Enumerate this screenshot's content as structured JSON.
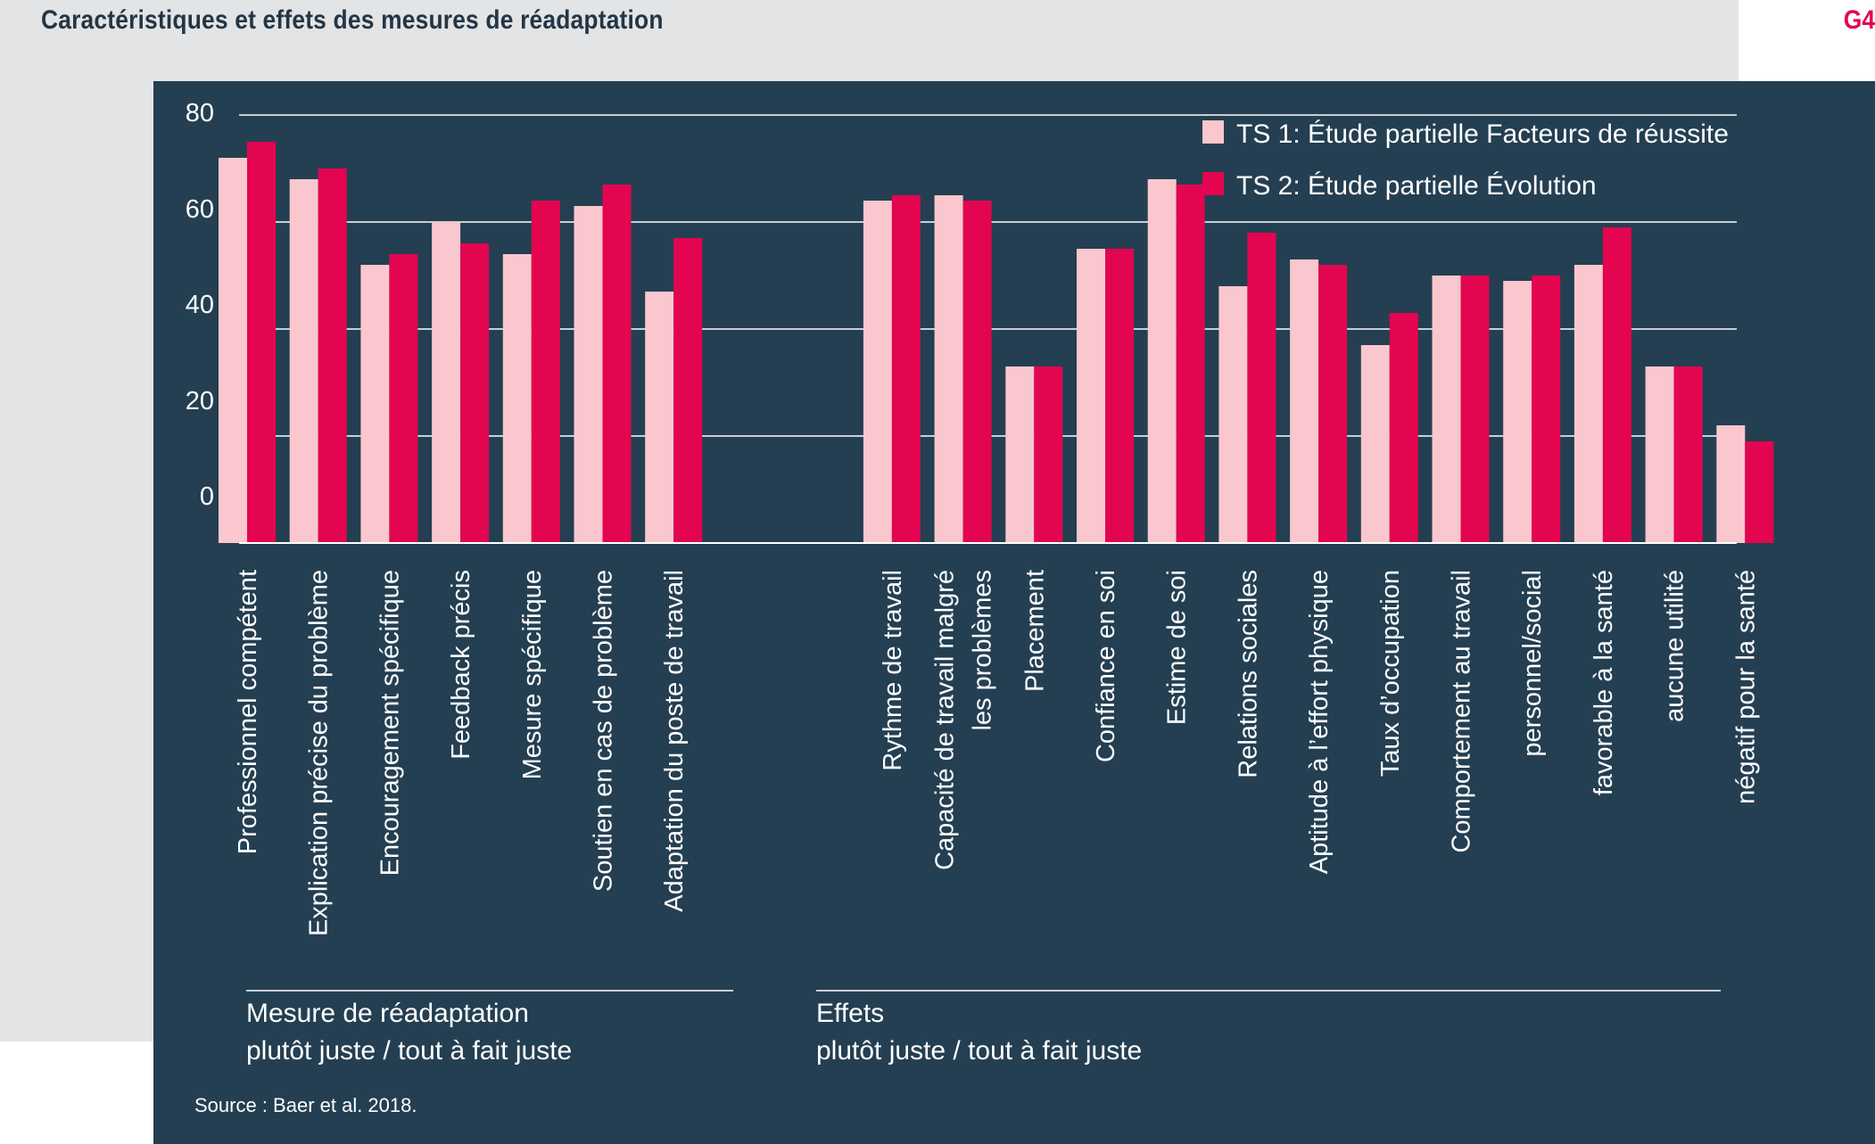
{
  "header": {
    "title": "Caractéristiques et effets des mesures de réadaptation",
    "figure_number": "G4"
  },
  "source": "Source : Baer et al. 2018.",
  "colors": {
    "panel_bg": "#243f52",
    "page_bg_grey": "#e3e4e6",
    "series_1": "#f9c7cd",
    "series_2": "#e30550",
    "grid": "#ffffff",
    "text": "#ffffff"
  },
  "chart_data": {
    "type": "bar",
    "title": "Caractéristiques et effets des mesures de réadaptation",
    "ylim": [
      0,
      80
    ],
    "yticks": [
      0,
      20,
      40,
      60,
      80
    ],
    "grid": true,
    "legend_position": "top-right",
    "categories": [
      "Professionnel compétent",
      "Explication précise du problème",
      "Encouragement spécifique",
      "Feedback précis",
      "Mesure spécifique",
      "Soutien en cas de problème",
      "Adaptation du poste de travail",
      "Rythme de travail",
      "Capacité de travail malgré les problèmes",
      "Placement",
      "Confiance en soi",
      "Estime de soi",
      "Relations sociales",
      "Aptitude à l’effort physique",
      "Taux d’occupation",
      "Comportement au travail",
      "personnel/social",
      "favorable à la santé",
      "aucune utilité",
      "négatif pour la santé"
    ],
    "category_lines": [
      [
        "Professionnel compétent"
      ],
      [
        "Explication précise du problème"
      ],
      [
        "Encouragement spécifique"
      ],
      [
        "Feedback précis"
      ],
      [
        "Mesure spécifique"
      ],
      [
        "Soutien en cas de problème"
      ],
      [
        "Adaptation du poste de travail"
      ],
      [
        "Rythme de travail"
      ],
      [
        "Capacité de travail malgré",
        "les problèmes"
      ],
      [
        "Placement"
      ],
      [
        "Confiance en soi"
      ],
      [
        "Estime de soi"
      ],
      [
        "Relations sociales"
      ],
      [
        "Aptitude à l’effort physique"
      ],
      [
        "Taux d’occupation"
      ],
      [
        "Comportement au travail"
      ],
      [
        "personnel/social"
      ],
      [
        "favorable à la santé"
      ],
      [
        "aucune utilité"
      ],
      [
        "négatif pour la santé"
      ]
    ],
    "series": [
      {
        "name": "TS 1: Étude partielle Facteurs de réussite",
        "color": "#f9c7cd",
        "values": [
          72,
          68,
          52,
          60,
          54,
          63,
          47,
          64,
          65,
          33,
          55,
          68,
          48,
          53,
          37,
          50,
          49,
          52,
          33,
          22
        ]
      },
      {
        "name": "TS 2: Étude partielle Évolution",
        "color": "#e30550",
        "values": [
          75,
          70,
          54,
          56,
          64,
          67,
          57,
          65,
          64,
          33,
          55,
          67,
          58,
          52,
          43,
          50,
          50,
          59,
          33,
          19
        ]
      }
    ],
    "groups": [
      {
        "label_line1": "Mesure de réadaptation",
        "label_line2": "plutôt juste / tout à fait juste",
        "from": 0,
        "to": 6
      },
      {
        "label_line1": "Effets",
        "label_line2": "plutôt juste / tout à fait juste",
        "from": 7,
        "to": 19
      }
    ]
  }
}
